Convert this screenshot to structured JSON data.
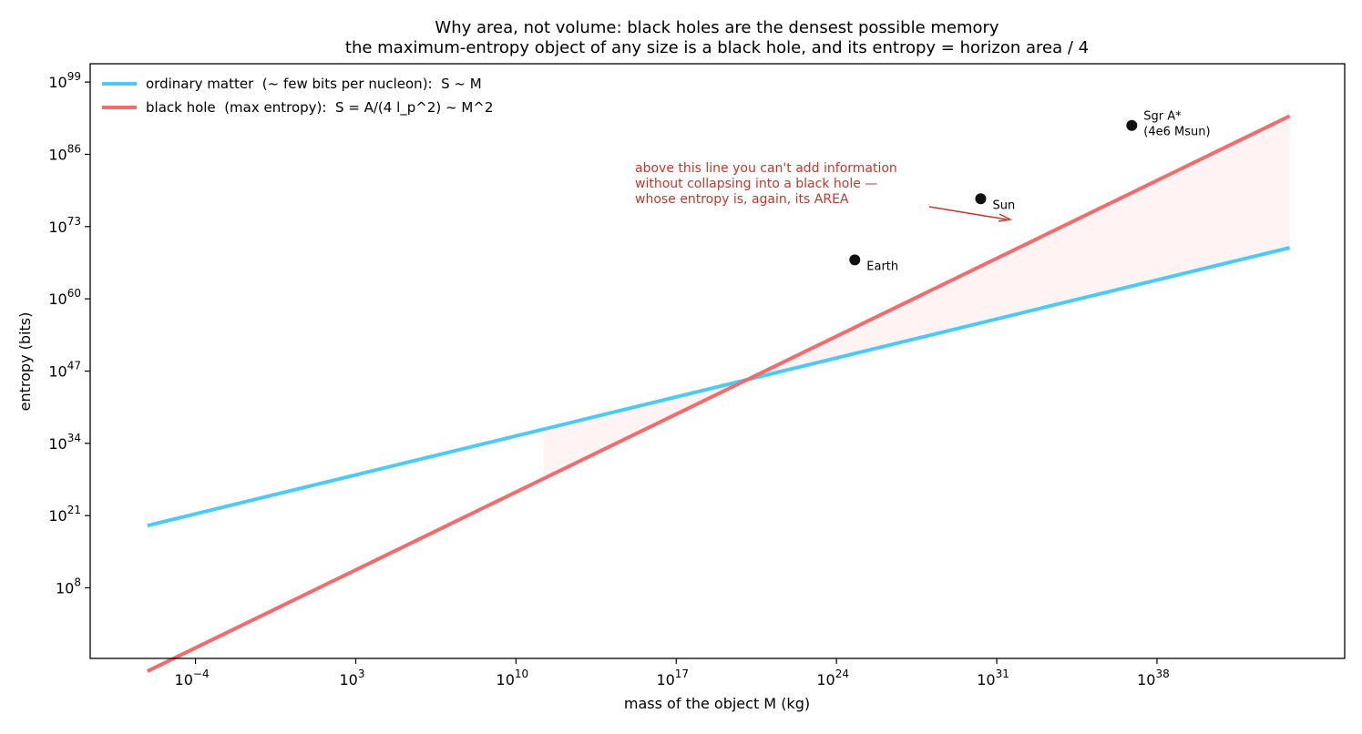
{
  "chart_data": {
    "type": "line",
    "title": "Why area, not volume: black holes are the densest possible memory",
    "subtitle": "the maximum-entropy object of any size is a black hole, and its entropy = horizon area / 4",
    "xlabel": "mass of the object  M  (kg)",
    "ylabel": "entropy  (bits)",
    "x_scale": "log",
    "y_scale": "log",
    "xlim_log10": [
      -8.6,
      46.2
    ],
    "ylim_log10": [
      -4.7,
      102.3
    ],
    "x_ticks": [
      {
        "base": "10",
        "exp": "−4",
        "log10": -4
      },
      {
        "base": "10",
        "exp": "3",
        "log10": 3
      },
      {
        "base": "10",
        "exp": "10",
        "log10": 10
      },
      {
        "base": "10",
        "exp": "17",
        "log10": 17
      },
      {
        "base": "10",
        "exp": "24",
        "log10": 24
      },
      {
        "base": "10",
        "exp": "31",
        "log10": 31
      },
      {
        "base": "10",
        "exp": "38",
        "log10": 38
      }
    ],
    "y_ticks": [
      {
        "base": "10",
        "exp": "8",
        "log10": 8
      },
      {
        "base": "10",
        "exp": "21",
        "log10": 21
      },
      {
        "base": "10",
        "exp": "34",
        "log10": 34
      },
      {
        "base": "10",
        "exp": "47",
        "log10": 47
      },
      {
        "base": "10",
        "exp": "60",
        "log10": 60
      },
      {
        "base": "10",
        "exp": "73",
        "log10": 73
      },
      {
        "base": "10",
        "exp": "86",
        "log10": 86
      },
      {
        "base": "10",
        "exp": "99",
        "log10": 99
      }
    ],
    "series": [
      {
        "name": "ordinary matter  (~ few bits per nucleon):  S ~ M",
        "color": "#4dc9f6",
        "x_log10": [
          -6.1,
          43.8
        ],
        "y_log10": [
          19.2,
          69.2
        ]
      },
      {
        "name": "black hole  (max entropy):  S = A/(4 l_p^2) ~ M^2",
        "color": "#f46b6b",
        "x_log10": [
          -6.1,
          43.8
        ],
        "y_log10": [
          -7.0,
          92.9
        ]
      }
    ],
    "fill_between": {
      "color": "#fff4f3",
      "from_x_log10": 11.2,
      "to_x_log10": 43.8
    },
    "points": [
      {
        "label": "Earth",
        "x_log10": 24.8,
        "y_log10": 67.0
      },
      {
        "label": "Sun",
        "x_log10": 30.3,
        "y_log10": 78.0
      },
      {
        "label": "Sgr A*",
        "label2": "(4e6 Msun)",
        "x_log10": 36.9,
        "y_log10": 91.2
      }
    ],
    "annotation": {
      "lines": [
        "above this line you can't add information",
        "without collapsing into a black hole —",
        "whose entropy is, again, its AREA"
      ],
      "color": "#c0392b"
    },
    "legend_position": "upper-left",
    "grid": false
  }
}
